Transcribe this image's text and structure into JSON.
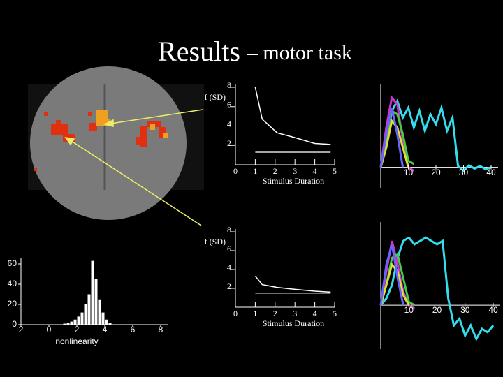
{
  "title": "Results",
  "subtitle": "– motor task",
  "chart_data": [
    {
      "type": "line",
      "ylabel": "f (SD)",
      "xlabel": "Stimulus Duration",
      "x": [
        1,
        1.35,
        2.1,
        3,
        4,
        4.8
      ],
      "series": [
        {
          "color": "#ffffff",
          "values": [
            8,
            4.7,
            3.3,
            2.8,
            2.2,
            2.1
          ]
        },
        {
          "color": "#dddddd",
          "values": [
            1.3,
            1.3,
            1.3,
            1.3,
            1.3,
            1.3
          ]
        }
      ],
      "xlim": [
        0,
        5
      ],
      "ylim": [
        0,
        8
      ],
      "xticks": [
        0,
        1,
        2,
        3,
        4,
        5
      ],
      "yticks": [
        2,
        4,
        6,
        8
      ]
    },
    {
      "type": "line",
      "ylabel": "f (SD)",
      "xlabel": "Stimulus Duration",
      "x": [
        1,
        1.35,
        2.1,
        3,
        4,
        4.8
      ],
      "series": [
        {
          "color": "#ffffff",
          "values": [
            3.3,
            2.4,
            2.1,
            1.9,
            1.7,
            1.6
          ]
        },
        {
          "color": "#dddddd",
          "values": [
            1.5,
            1.5,
            1.5,
            1.5,
            1.5,
            1.5
          ]
        }
      ],
      "xlim": [
        0,
        5
      ],
      "ylim": [
        0,
        8
      ],
      "xticks": [
        0,
        1,
        2,
        3,
        4,
        5
      ],
      "yticks": [
        2,
        4,
        6,
        8
      ]
    },
    {
      "type": "histogram",
      "xlabel": "nonlinearity",
      "color": "#ffffff",
      "bins": [
        1,
        1.25,
        1.5,
        1.75,
        2,
        2.25,
        2.5,
        2.75,
        3,
        3.25,
        3.5,
        3.75,
        4,
        4.25,
        4.5
      ],
      "values": [
        1,
        2,
        3,
        5,
        8,
        12,
        20,
        30,
        63,
        45,
        25,
        12,
        5,
        2
      ],
      "xlim": [
        -2,
        8
      ],
      "ylim": [
        0,
        60
      ],
      "xticks": [
        {
          "value": -2,
          "label": "2"
        },
        0,
        2,
        4,
        6,
        8
      ],
      "yticks": [
        0,
        20,
        40,
        60
      ]
    },
    {
      "type": "timecourse",
      "x": [
        0,
        2,
        4,
        6,
        8,
        10,
        12,
        14,
        16,
        18,
        20,
        22,
        24,
        26,
        28,
        30,
        32,
        34,
        36,
        38,
        40
      ],
      "series": [
        {
          "color": "#33ddee",
          "values": [
            0,
            0.3,
            0.85,
            1.0,
            0.75,
            0.9,
            0.6,
            0.85,
            0.55,
            0.8,
            0.65,
            0.9,
            0.55,
            0.75,
            0.02,
            -0.05,
            0.03,
            -0.02,
            0.02,
            -0.03,
            0
          ]
        },
        {
          "color": "#cc33cc",
          "values": [
            0,
            0.6,
            1.05,
            0.95,
            0.4,
            0,
            -0.05,
            null,
            null,
            null,
            null,
            null,
            null,
            null,
            null,
            null,
            null,
            null,
            null,
            null,
            null
          ]
        },
        {
          "color": "#44cc44",
          "values": [
            0,
            0.4,
            0.85,
            0.8,
            0.5,
            0.1,
            0.05,
            null,
            null,
            null,
            null,
            null,
            null,
            null,
            null,
            null,
            null,
            null,
            null,
            null,
            null
          ]
        },
        {
          "color": "#dddd33",
          "values": [
            0,
            0.3,
            0.7,
            0.6,
            0.3,
            0,
            null,
            null,
            null,
            null,
            null,
            null,
            null,
            null,
            null,
            null,
            null,
            null,
            null,
            null,
            null
          ]
        },
        {
          "color": "#6666ff",
          "values": [
            0,
            0.5,
            0.9,
            0.5,
            0,
            null,
            null,
            null,
            null,
            null,
            null,
            null,
            null,
            null,
            null,
            null,
            null,
            null,
            null,
            null,
            null
          ]
        }
      ],
      "xlim": [
        0,
        40
      ],
      "ylim": [
        -0.32,
        1.26
      ],
      "xticks": [
        10,
        20,
        30,
        40
      ]
    },
    {
      "type": "timecourse",
      "x": [
        0,
        2,
        4,
        6,
        8,
        10,
        12,
        14,
        16,
        18,
        20,
        22,
        24,
        26,
        28,
        30,
        32,
        34,
        36,
        38,
        40
      ],
      "series": [
        {
          "color": "#33ddee",
          "values": [
            0,
            0.1,
            0.3,
            0.7,
            0.95,
            1.0,
            0.9,
            0.95,
            1.0,
            0.95,
            0.9,
            0.95,
            0.1,
            -0.3,
            -0.2,
            -0.45,
            -0.3,
            -0.5,
            -0.35,
            -0.4,
            -0.3
          ]
        },
        {
          "color": "#cc33cc",
          "values": [
            0,
            0.5,
            0.95,
            0.6,
            0.2,
            0,
            -0.05,
            null,
            null,
            null,
            null,
            null,
            null,
            null,
            null,
            null,
            null,
            null,
            null,
            null,
            null
          ]
        },
        {
          "color": "#44cc44",
          "values": [
            0,
            0.3,
            0.7,
            0.75,
            0.4,
            0.05,
            0,
            null,
            null,
            null,
            null,
            null,
            null,
            null,
            null,
            null,
            null,
            null,
            null,
            null,
            null
          ]
        },
        {
          "color": "#dddd33",
          "values": [
            0,
            0.3,
            0.6,
            0.5,
            0.15,
            0,
            null,
            null,
            null,
            null,
            null,
            null,
            null,
            null,
            null,
            null,
            null,
            null,
            null,
            null,
            null
          ]
        },
        {
          "color": "#6666ff",
          "values": [
            0,
            0.6,
            0.9,
            0.4,
            0,
            null,
            null,
            null,
            null,
            null,
            null,
            null,
            null,
            null,
            null,
            null,
            null,
            null,
            null,
            null,
            null
          ]
        }
      ],
      "xlim": [
        0,
        40
      ],
      "ylim": [
        -0.65,
        1.23
      ],
      "xticks": [
        10,
        20,
        30,
        40
      ]
    }
  ]
}
